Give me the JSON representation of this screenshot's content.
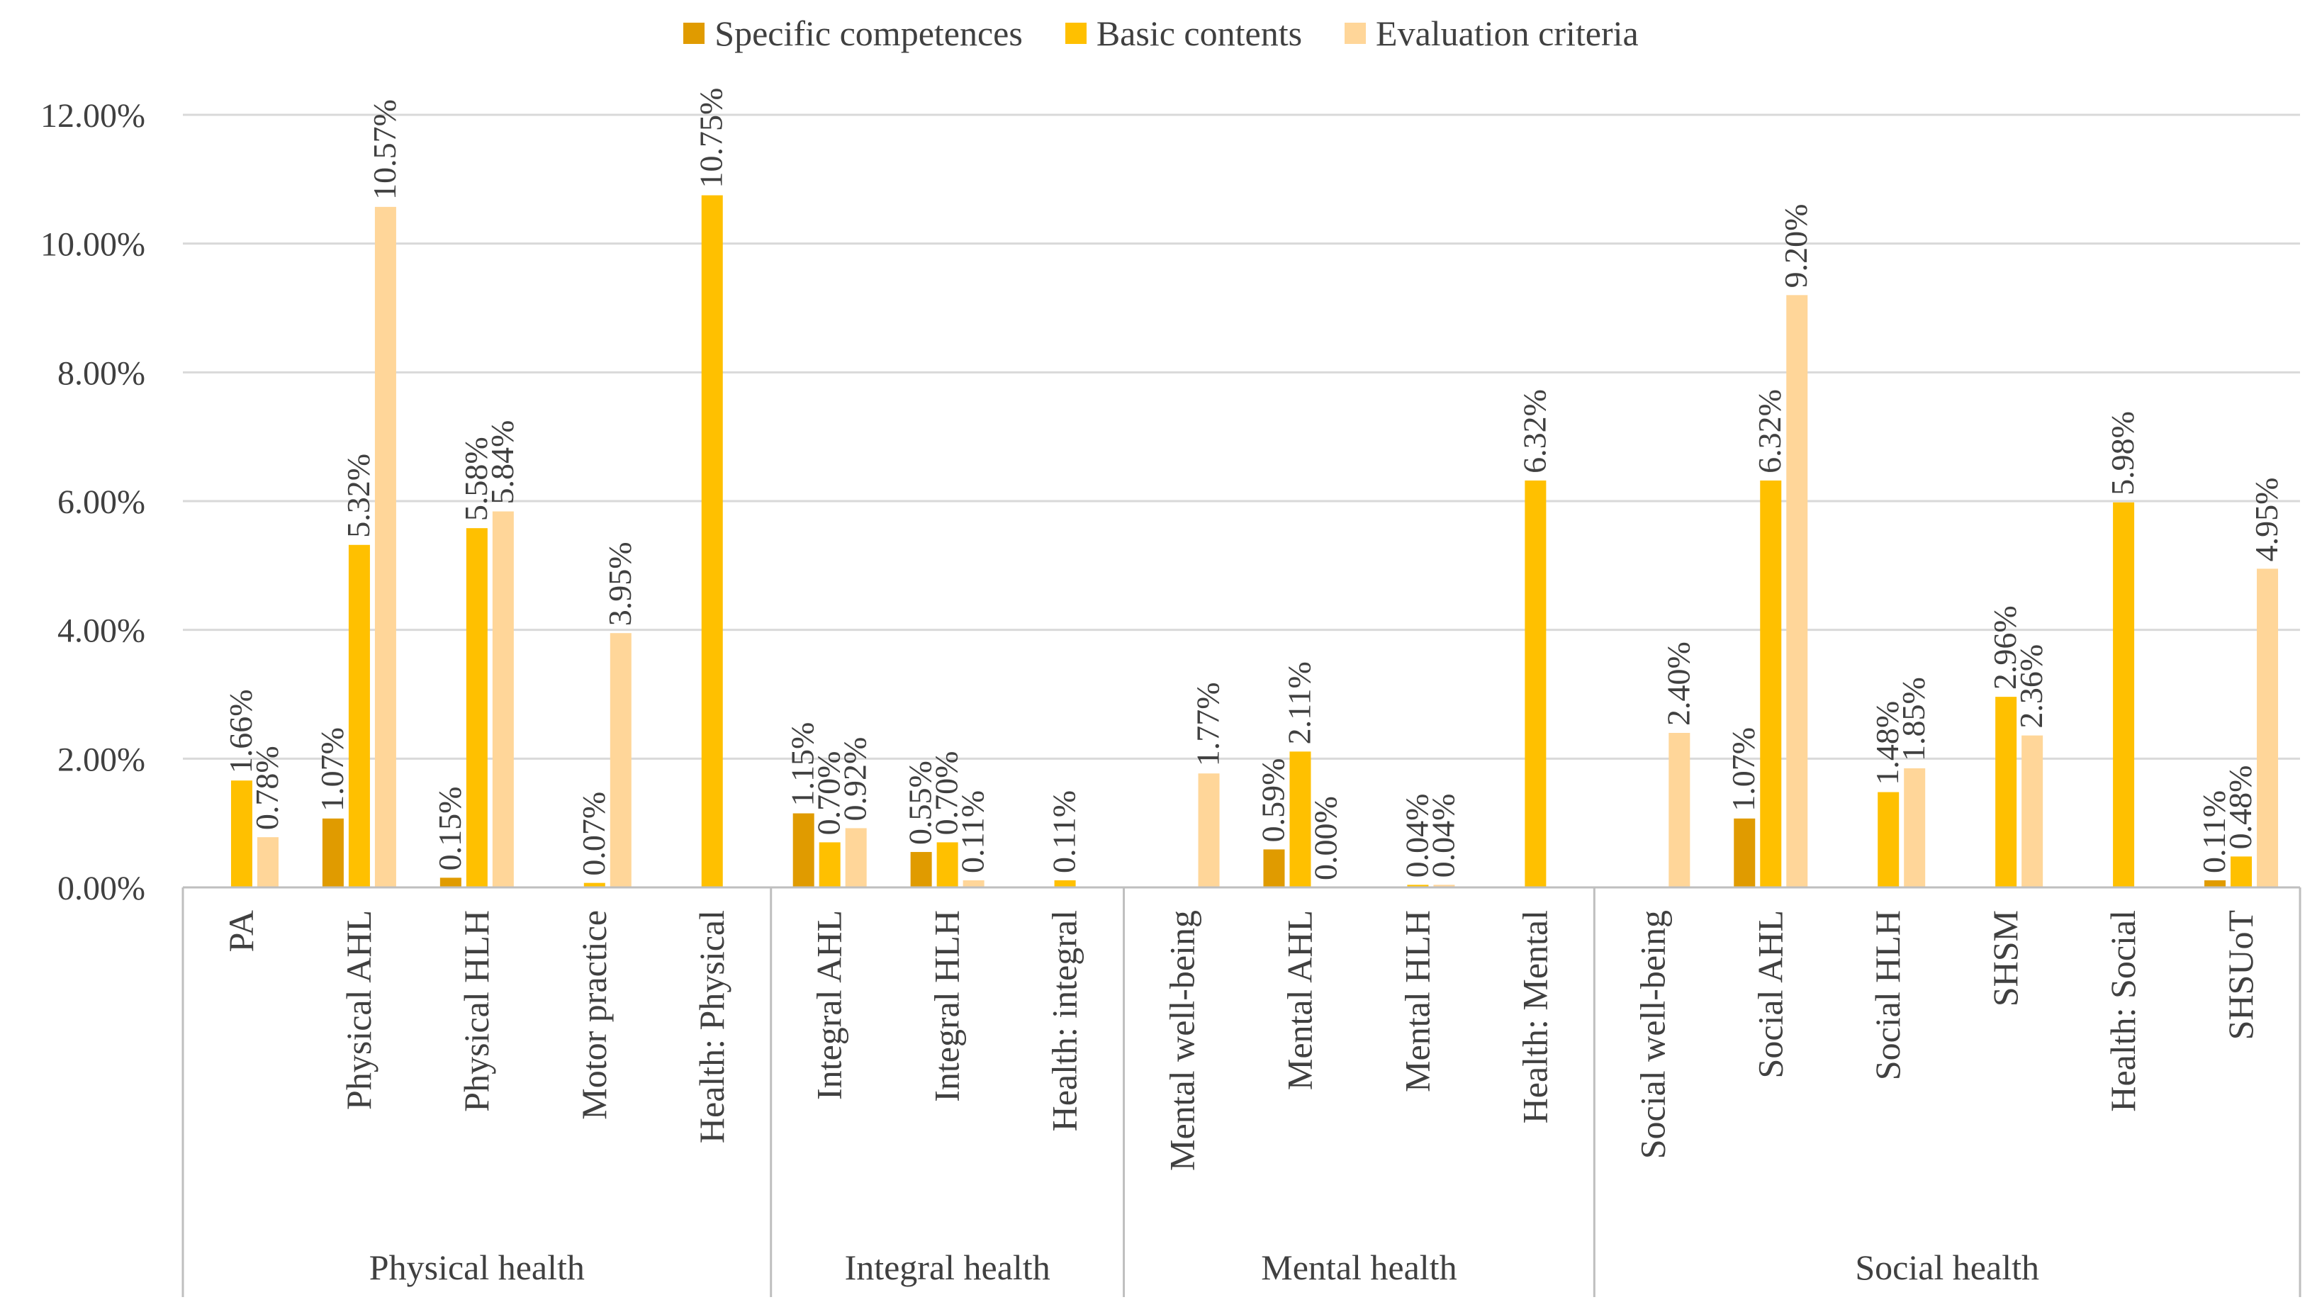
{
  "chart_data": {
    "type": "bar",
    "title": "",
    "xlabel": "",
    "ylabel": "",
    "ylim": [
      0,
      12
    ],
    "yticks": [
      "0.00%",
      "2.00%",
      "4.00%",
      "6.00%",
      "8.00%",
      "10.00%",
      "12.00%"
    ],
    "grid": true,
    "legend_position": "top-center",
    "groups": [
      {
        "name": "Physical health",
        "categories": [
          "PA",
          "Physical AHL",
          "Physical HLH",
          "Motor practice",
          "Health: Physical"
        ]
      },
      {
        "name": "Integral health",
        "categories": [
          "Integral AHL",
          "Integral HLH",
          "Health: integral"
        ]
      },
      {
        "name": "Mental health",
        "categories": [
          "Mental well-being",
          "Mental AHL",
          "Mental HLH",
          "Health: Mental"
        ]
      },
      {
        "name": "Social health",
        "categories": [
          "Social well-being",
          "Social AHL",
          "Social HLH",
          "SHSM",
          "Health: Social",
          "SHSUoT"
        ]
      }
    ],
    "series": [
      {
        "name": "Specific competences",
        "color": "#E09B00",
        "values": [
          null,
          1.07,
          0.15,
          null,
          null,
          1.15,
          0.55,
          null,
          null,
          0.59,
          null,
          null,
          null,
          1.07,
          null,
          null,
          null,
          0.11
        ],
        "labels": [
          null,
          "1.07%",
          "0.15%",
          null,
          null,
          "1.15%",
          "0.55%",
          null,
          null,
          "0.59%",
          null,
          null,
          null,
          "1.07%",
          null,
          null,
          null,
          "0.11%"
        ]
      },
      {
        "name": "Basic contents",
        "color": "#FFC000",
        "values": [
          1.66,
          5.32,
          5.58,
          0.07,
          10.75,
          0.7,
          0.7,
          0.11,
          null,
          2.11,
          0.04,
          6.32,
          null,
          6.32,
          1.48,
          2.96,
          5.98,
          0.48
        ],
        "labels": [
          "1.66%",
          "5.32%",
          "5.58%",
          "0.07%",
          "10.75%",
          "0.70%",
          "0.70%",
          "0.11%",
          null,
          "2.11%",
          "0.04%",
          "6.32%",
          null,
          "6.32%",
          "1.48%",
          "2.96%",
          "5.98%",
          "0.48%"
        ]
      },
      {
        "name": "Evaluation criteria",
        "color": "#FFD699",
        "values": [
          0.78,
          10.57,
          5.84,
          3.95,
          null,
          0.92,
          0.11,
          null,
          1.77,
          0.0,
          0.04,
          null,
          2.4,
          9.2,
          1.85,
          2.36,
          null,
          4.95
        ],
        "labels": [
          "0.78%",
          "10.57%",
          "5.84%",
          "3.95%",
          null,
          "0.92%",
          "0.11%",
          null,
          "1.77%",
          "0.00%",
          "0.04%",
          null,
          "2.40%",
          "9.20%",
          "1.85%",
          "2.36%",
          null,
          "4.95%"
        ]
      }
    ]
  }
}
